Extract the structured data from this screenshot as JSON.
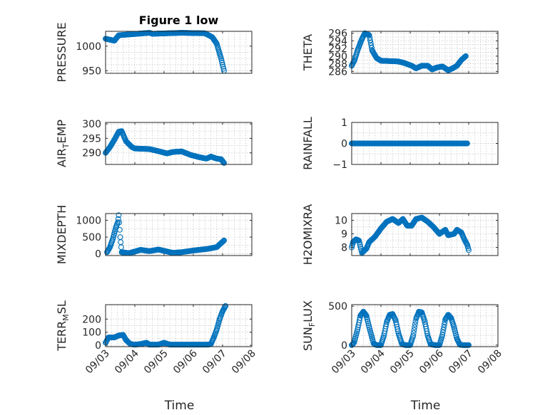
{
  "figure": {
    "title": "Figure 1 low",
    "bottom_xlabels": [
      "Time",
      "Time"
    ]
  },
  "chart_data": [
    {
      "type": "scatter",
      "ylabel": "PRESSURE",
      "title": "Figure 1 low",
      "ylim": [
        945,
        1030
      ],
      "yticks": [
        950,
        1000
      ],
      "grid": true,
      "xticks": [
        "09/03",
        "09/04",
        "09/05",
        "09/06",
        "09/07",
        "09/08"
      ],
      "xlim": [
        0,
        5
      ],
      "series": [
        {
          "color": "#0072bd",
          "keys": [
            [
              0,
              1015
            ],
            [
              0.3,
              1011
            ],
            [
              0.45,
              1022
            ],
            [
              1.5,
              1027
            ],
            [
              1.6,
              1025
            ],
            [
              2.6,
              1027
            ],
            [
              3.4,
              1026
            ],
            [
              3.65,
              1018
            ],
            [
              3.8,
              1005
            ],
            [
              3.95,
              975
            ],
            [
              4.05,
              950
            ]
          ]
        }
      ]
    },
    {
      "type": "scatter",
      "ylabel": "THETA",
      "ylim": [
        285.5,
        296.5
      ],
      "yticks": [
        286,
        288,
        290,
        292,
        294,
        296
      ],
      "grid": true,
      "xticks": [
        "09/03",
        "09/04",
        "09/05",
        "09/06",
        "09/07",
        "09/08"
      ],
      "xlim": [
        0,
        5
      ],
      "series": [
        {
          "color": "#0072bd",
          "keys": [
            [
              0,
              287.5
            ],
            [
              0.1,
              289
            ],
            [
              0.2,
              291.5
            ],
            [
              0.35,
              294.5
            ],
            [
              0.45,
              296
            ],
            [
              0.6,
              295.5
            ],
            [
              0.7,
              291.5
            ],
            [
              0.85,
              289.5
            ],
            [
              1.0,
              288.8
            ],
            [
              1.6,
              288.6
            ],
            [
              1.8,
              288.2
            ],
            [
              2.05,
              287.5
            ],
            [
              2.2,
              286.8
            ],
            [
              2.4,
              287.5
            ],
            [
              2.6,
              287.5
            ],
            [
              2.75,
              286.5
            ],
            [
              2.9,
              287
            ],
            [
              3.1,
              287.3
            ],
            [
              3.3,
              286.3
            ],
            [
              3.45,
              286.8
            ],
            [
              3.6,
              287.5
            ],
            [
              3.75,
              289
            ],
            [
              3.9,
              290
            ]
          ]
        }
      ]
    },
    {
      "type": "scatter",
      "ylabel": "AIR_TEMP",
      "ylim": [
        286,
        300.5
      ],
      "yticks": [
        290,
        295,
        300
      ],
      "grid": true,
      "xticks": [
        "09/03",
        "09/04",
        "09/05",
        "09/06",
        "09/07",
        "09/08"
      ],
      "xlim": [
        0,
        5
      ],
      "series": [
        {
          "color": "#0072bd",
          "keys": [
            [
              0,
              290
            ],
            [
              0.15,
              292
            ],
            [
              0.3,
              294.5
            ],
            [
              0.45,
              297.3
            ],
            [
              0.55,
              297.5
            ],
            [
              0.7,
              294
            ],
            [
              0.8,
              293
            ],
            [
              0.9,
              292
            ],
            [
              1.0,
              291.5
            ],
            [
              1.5,
              291.3
            ],
            [
              1.8,
              290.6
            ],
            [
              2.1,
              289.8
            ],
            [
              2.3,
              290.3
            ],
            [
              2.6,
              290.5
            ],
            [
              2.9,
              289.3
            ],
            [
              3.2,
              288.5
            ],
            [
              3.45,
              288
            ],
            [
              3.6,
              288.7
            ],
            [
              3.8,
              288
            ],
            [
              3.95,
              287.8
            ],
            [
              4.05,
              286.5
            ]
          ]
        }
      ]
    },
    {
      "type": "scatter",
      "ylabel": "RAINFALL",
      "ylim": [
        -1,
        1
      ],
      "yticks": [
        -1,
        0,
        1
      ],
      "grid": true,
      "xticks": [
        "09/03",
        "09/04",
        "09/05",
        "09/06",
        "09/07",
        "09/08"
      ],
      "xlim": [
        0,
        5
      ],
      "series": [
        {
          "color": "#0072bd",
          "keys": [
            [
              0,
              0
            ],
            [
              3.95,
              0
            ]
          ]
        }
      ]
    },
    {
      "type": "scatter",
      "ylabel": "MIXDEPTH",
      "ylim": [
        -50,
        1200
      ],
      "yticks": [
        0,
        500,
        1000
      ],
      "grid": true,
      "xticks": [
        "09/03",
        "09/04",
        "09/05",
        "09/06",
        "09/07",
        "09/08"
      ],
      "xlim": [
        0,
        5
      ],
      "series": [
        {
          "color": "#0072bd",
          "keys": [
            [
              0.05,
              50
            ],
            [
              0.15,
              200
            ],
            [
              0.25,
              450
            ],
            [
              0.35,
              780
            ],
            [
              0.42,
              950
            ],
            [
              0.45,
              1150
            ],
            [
              0.5,
              500
            ],
            [
              0.55,
              50
            ],
            [
              0.8,
              20
            ],
            [
              1.2,
              120
            ],
            [
              1.5,
              80
            ],
            [
              1.8,
              130
            ],
            [
              2.3,
              30
            ],
            [
              2.6,
              50
            ],
            [
              3.0,
              100
            ],
            [
              3.5,
              150
            ],
            [
              3.8,
              200
            ],
            [
              4.05,
              400
            ]
          ]
        }
      ]
    },
    {
      "type": "scatter",
      "ylabel": "H2OMIXRA",
      "ylim": [
        7.4,
        10.5
      ],
      "yticks": [
        8,
        9,
        10
      ],
      "grid": true,
      "xticks": [
        "09/03",
        "09/04",
        "09/05",
        "09/06",
        "09/07",
        "09/08"
      ],
      "xlim": [
        0,
        5
      ],
      "series": [
        {
          "color": "#0072bd",
          "keys": [
            [
              0,
              8
            ],
            [
              0.05,
              8.4
            ],
            [
              0.15,
              8.6
            ],
            [
              0.25,
              8.5
            ],
            [
              0.35,
              7.6
            ],
            [
              0.5,
              7.9
            ],
            [
              0.6,
              8.4
            ],
            [
              0.8,
              8.8
            ],
            [
              1.0,
              9.4
            ],
            [
              1.2,
              9.9
            ],
            [
              1.4,
              10.1
            ],
            [
              1.6,
              9.8
            ],
            [
              1.75,
              10.1
            ],
            [
              1.9,
              9.6
            ],
            [
              2.05,
              9.6
            ],
            [
              2.2,
              10.1
            ],
            [
              2.4,
              10.2
            ],
            [
              2.6,
              9.9
            ],
            [
              2.8,
              9.5
            ],
            [
              3.0,
              9
            ],
            [
              3.2,
              9.3
            ],
            [
              3.3,
              8.9
            ],
            [
              3.5,
              9
            ],
            [
              3.6,
              9.3
            ],
            [
              3.75,
              9.1
            ],
            [
              3.85,
              8.6
            ],
            [
              3.95,
              8.2
            ],
            [
              4.0,
              7.8
            ]
          ]
        }
      ]
    },
    {
      "type": "scatter",
      "ylabel": "TERR_MSL",
      "ylim": [
        -10,
        310
      ],
      "yticks": [
        0,
        100,
        200
      ],
      "grid": true,
      "xticks": [
        "09/03",
        "09/04",
        "09/05",
        "09/06",
        "09/07",
        "09/08"
      ],
      "xlim": [
        0,
        5
      ],
      "series": [
        {
          "color": "#0072bd",
          "keys": [
            [
              0,
              20
            ],
            [
              0.1,
              60
            ],
            [
              0.3,
              60
            ],
            [
              0.45,
              75
            ],
            [
              0.6,
              80
            ],
            [
              0.7,
              40
            ],
            [
              0.85,
              10
            ],
            [
              1.0,
              5
            ],
            [
              1.2,
              10
            ],
            [
              1.4,
              20
            ],
            [
              1.5,
              5
            ],
            [
              1.8,
              5
            ],
            [
              2.0,
              20
            ],
            [
              2.2,
              5
            ],
            [
              3.0,
              5
            ],
            [
              3.5,
              5
            ],
            [
              3.6,
              10
            ],
            [
              3.7,
              60
            ],
            [
              3.8,
              120
            ],
            [
              3.9,
              200
            ],
            [
              4.0,
              260
            ],
            [
              4.1,
              300
            ]
          ]
        }
      ]
    },
    {
      "type": "scatter",
      "ylabel": "SUN_FLUX",
      "ylim": [
        -20,
        520
      ],
      "yticks": [
        0,
        500
      ],
      "grid": true,
      "xticks": [
        "09/03",
        "09/04",
        "09/05",
        "09/06",
        "09/07",
        "09/08"
      ],
      "xlim": [
        0,
        5
      ],
      "series": [
        {
          "color": "#0072bd",
          "keys": [
            [
              0,
              0
            ],
            [
              0.08,
              30
            ],
            [
              0.2,
              200
            ],
            [
              0.3,
              380
            ],
            [
              0.4,
              430
            ],
            [
              0.5,
              380
            ],
            [
              0.62,
              200
            ],
            [
              0.75,
              20
            ],
            [
              0.85,
              0
            ],
            [
              1.0,
              0
            ],
            [
              1.1,
              120
            ],
            [
              1.2,
              300
            ],
            [
              1.3,
              390
            ],
            [
              1.4,
              400
            ],
            [
              1.5,
              320
            ],
            [
              1.6,
              150
            ],
            [
              1.72,
              10
            ],
            [
              1.85,
              0
            ],
            [
              2.0,
              0
            ],
            [
              2.1,
              120
            ],
            [
              2.2,
              340
            ],
            [
              2.3,
              430
            ],
            [
              2.4,
              420
            ],
            [
              2.5,
              300
            ],
            [
              2.6,
              120
            ],
            [
              2.7,
              10
            ],
            [
              2.85,
              0
            ],
            [
              3.0,
              0
            ],
            [
              3.1,
              130
            ],
            [
              3.2,
              330
            ],
            [
              3.3,
              390
            ],
            [
              3.4,
              350
            ],
            [
              3.5,
              230
            ],
            [
              3.6,
              80
            ],
            [
              3.7,
              5
            ],
            [
              3.8,
              0
            ],
            [
              4.0,
              0
            ]
          ]
        }
      ]
    }
  ]
}
